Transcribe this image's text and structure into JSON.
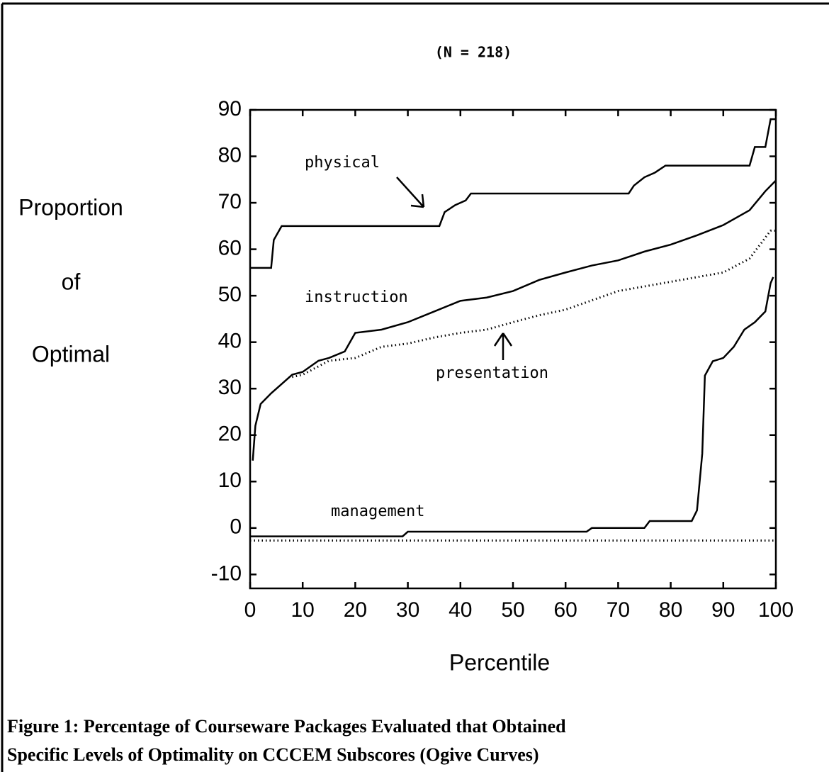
{
  "chart_data": {
    "type": "line",
    "subtitle": "(N = 218)",
    "ylabel": [
      "Proportion",
      "of",
      "Optimal"
    ],
    "xlabel": "Percentile",
    "caption": [
      "Figure 1: Percentage of Courseware Packages Evaluated that Obtained",
      "Specific Levels of Optimality on CCCEM Subscores (Ogive Curves)"
    ],
    "xlim": [
      0,
      100
    ],
    "ylim": [
      -13,
      90
    ],
    "xticks": [
      0,
      10,
      20,
      30,
      40,
      50,
      60,
      70,
      80,
      90,
      100
    ],
    "yticks": [
      -10,
      0,
      10,
      20,
      30,
      40,
      50,
      60,
      70,
      80,
      90
    ],
    "series": [
      {
        "name": "physical",
        "color": "#000000",
        "style": "solid",
        "x": [
          0,
          4,
          4.5,
          6,
          36,
          37,
          39,
          41,
          42,
          72,
          73,
          75,
          77,
          79,
          95,
          96,
          98,
          99,
          100
        ],
        "values": [
          56,
          56,
          62,
          65,
          65,
          68,
          69.5,
          70.5,
          72,
          72,
          73.7,
          75.5,
          76.5,
          78,
          78,
          82,
          82,
          88,
          88
        ]
      },
      {
        "name": "instruction",
        "color": "#000000",
        "style": "solid",
        "x": [
          0.5,
          1,
          2,
          4,
          6,
          8,
          10,
          13,
          15,
          18,
          20,
          25,
          30,
          35,
          40,
          45,
          50,
          55,
          60,
          65,
          70,
          75,
          80,
          85,
          90,
          95,
          98,
          100
        ],
        "values": [
          14.5,
          22,
          26.7,
          29,
          31,
          33,
          33.6,
          36,
          36.6,
          38,
          42,
          42.7,
          44.3,
          46.6,
          48.9,
          49.6,
          51,
          53.4,
          55,
          56.5,
          57.6,
          59.5,
          61,
          63,
          65.2,
          68.4,
          72.5,
          74.8
        ]
      },
      {
        "name": "presentation",
        "color": "#000000",
        "style": "dotted",
        "x": [
          8,
          10,
          15,
          20,
          25,
          30,
          35,
          40,
          45,
          50,
          55,
          60,
          65,
          70,
          75,
          80,
          85,
          90,
          95,
          97,
          99,
          100
        ],
        "values": [
          32.5,
          33,
          36,
          36.6,
          39,
          39.7,
          41,
          42,
          42.7,
          44.3,
          45.8,
          47,
          49,
          51,
          52,
          53,
          54,
          55,
          58,
          61,
          64,
          64
        ]
      },
      {
        "name": "management",
        "color": "#000000",
        "style": "solid",
        "x": [
          0,
          29,
          30,
          64,
          65,
          75,
          76,
          84,
          85,
          86,
          86.5,
          88,
          90,
          92,
          94,
          96,
          98,
          99,
          99.5
        ],
        "values": [
          -1.8,
          -1.8,
          -0.8,
          -0.8,
          0,
          0,
          1.5,
          1.5,
          3.8,
          16,
          32.8,
          35.9,
          36.6,
          39,
          42.7,
          44.3,
          46.6,
          52.7,
          54
        ]
      },
      {
        "color": "#000000",
        "style": "dotted",
        "x": [
          0,
          100
        ],
        "values": [
          -2.7,
          -2.7
        ]
      }
    ]
  }
}
